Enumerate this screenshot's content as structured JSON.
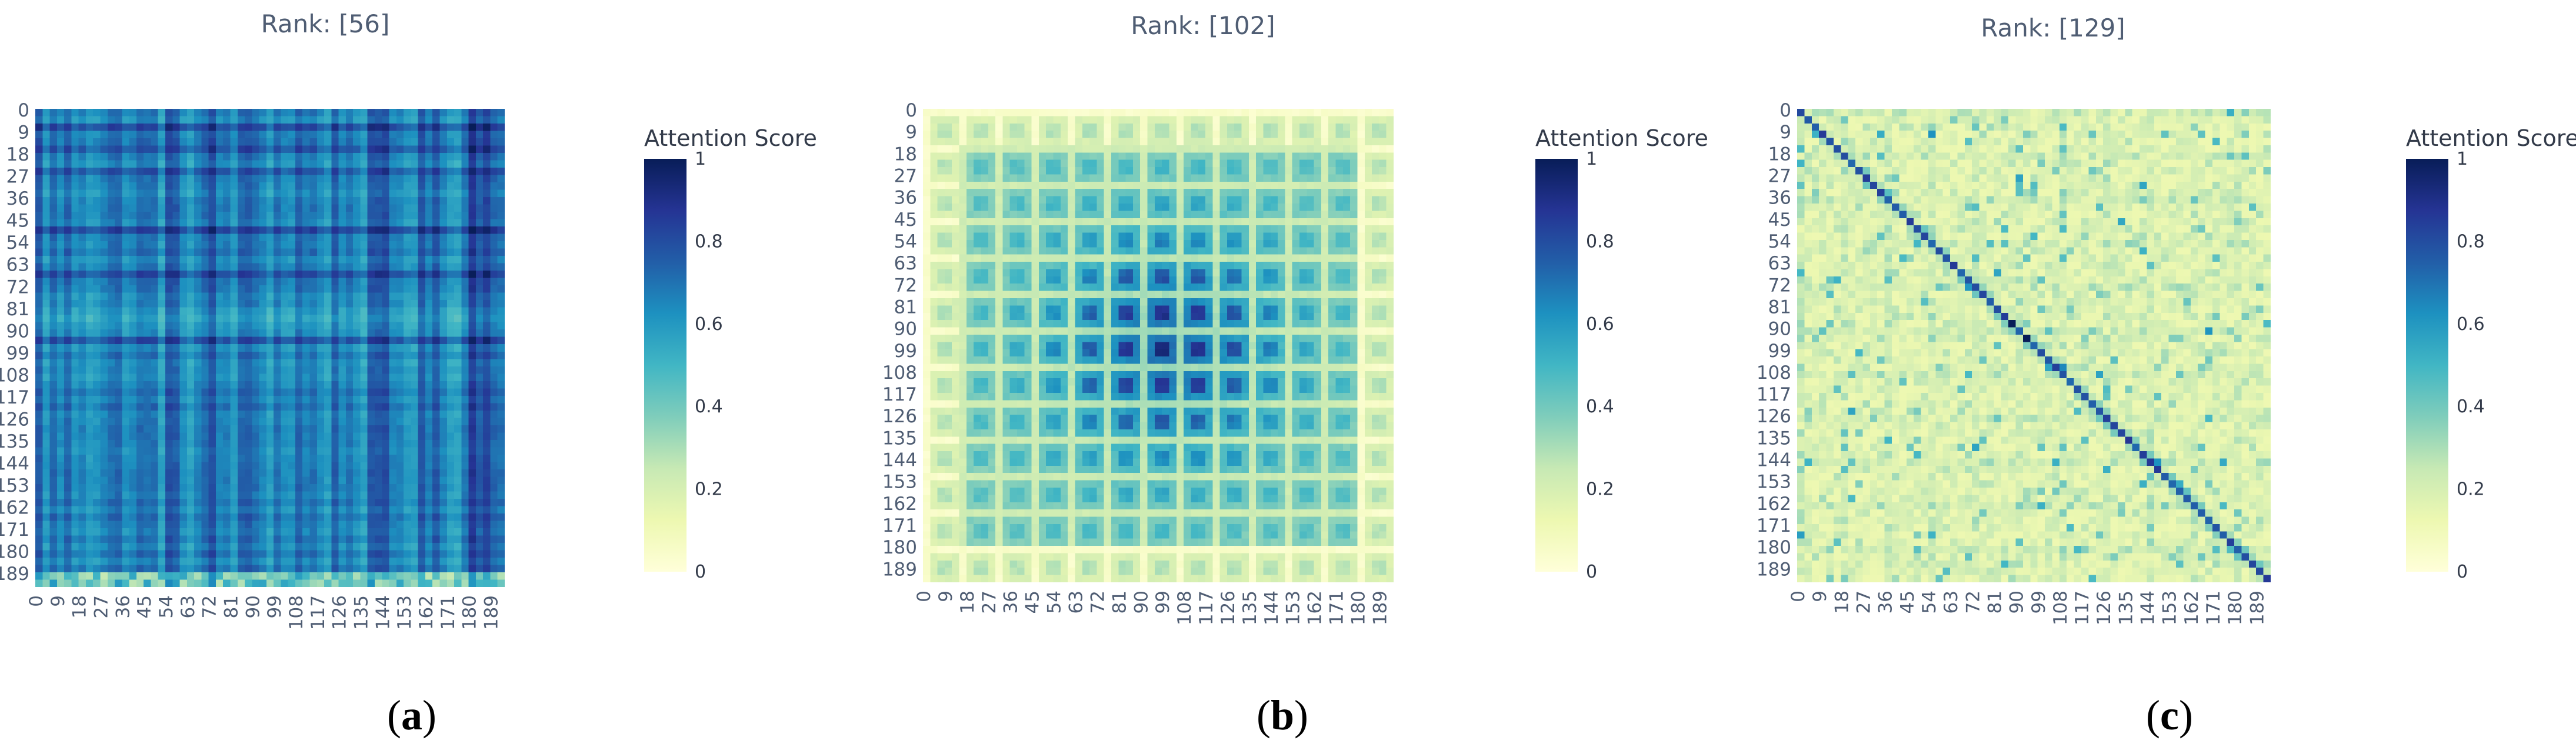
{
  "chart_data": [
    {
      "type": "heatmap",
      "title": "Rank: [56]",
      "panel_label": {
        "open": "(",
        "letter": "a",
        "close": ")"
      },
      "pattern": "column-stripes",
      "x_tick_labels": [
        "0",
        "9",
        "18",
        "27",
        "36",
        "45",
        "54",
        "63",
        "72",
        "81",
        "90",
        "99",
        "108",
        "117",
        "126",
        "135",
        "144",
        "153",
        "162",
        "171",
        "180",
        "189"
      ],
      "y_tick_labels": [
        "0",
        "9",
        "18",
        "27",
        "36",
        "45",
        "54",
        "63",
        "72",
        "81",
        "90",
        "99",
        "108",
        "117",
        "126",
        "135",
        "144",
        "153",
        "162",
        "171",
        "180",
        "189"
      ],
      "xlim": [
        0,
        195
      ],
      "ylim": [
        0,
        195
      ],
      "value_range": [
        0,
        1
      ],
      "typical_value_range": [
        0.45,
        0.9
      ],
      "colorbar": {
        "title": "Attention Score",
        "ticks": [
          "0",
          "0.2",
          "0.4",
          "0.6",
          "0.8",
          "1"
        ],
        "colorscale": "YlGnBu"
      }
    },
    {
      "type": "heatmap",
      "title": "Rank: [102]",
      "panel_label": {
        "open": "(",
        "letter": "b",
        "close": ")"
      },
      "pattern": "block-grid",
      "x_tick_labels": [
        "0",
        "9",
        "18",
        "27",
        "36",
        "45",
        "54",
        "63",
        "72",
        "81",
        "90",
        "99",
        "108",
        "117",
        "126",
        "135",
        "144",
        "153",
        "162",
        "171",
        "180",
        "189"
      ],
      "y_tick_labels": [
        "0",
        "9",
        "18",
        "27",
        "36",
        "45",
        "54",
        "63",
        "72",
        "81",
        "90",
        "99",
        "108",
        "117",
        "126",
        "135",
        "144",
        "153",
        "162",
        "171",
        "180",
        "189"
      ],
      "xlim": [
        0,
        195
      ],
      "ylim": [
        0,
        195
      ],
      "value_range": [
        0,
        1
      ],
      "typical_value_range": [
        0.1,
        0.95
      ],
      "colorbar": {
        "title": "Attention Score",
        "ticks": [
          "0",
          "0.2",
          "0.4",
          "0.6",
          "0.8",
          "1"
        ],
        "colorscale": "YlGnBu"
      }
    },
    {
      "type": "heatmap",
      "title": "Rank: [129]",
      "panel_label": {
        "open": "(",
        "letter": "c",
        "close": ")"
      },
      "pattern": "sparse-diagonal",
      "x_tick_labels": [
        "0",
        "9",
        "18",
        "27",
        "36",
        "45",
        "54",
        "63",
        "72",
        "81",
        "90",
        "99",
        "108",
        "117",
        "126",
        "135",
        "144",
        "153",
        "162",
        "171",
        "180",
        "189"
      ],
      "y_tick_labels": [
        "0",
        "9",
        "18",
        "27",
        "36",
        "45",
        "54",
        "63",
        "72",
        "81",
        "90",
        "99",
        "108",
        "117",
        "126",
        "135",
        "144",
        "153",
        "162",
        "171",
        "180",
        "189"
      ],
      "xlim": [
        0,
        195
      ],
      "ylim": [
        0,
        195
      ],
      "value_range": [
        0,
        1
      ],
      "typical_value_range": [
        0.05,
        0.6
      ],
      "colorbar": {
        "title": "Attention Score",
        "ticks": [
          "0",
          "0.2",
          "0.4",
          "0.6",
          "0.8",
          "1"
        ],
        "colorscale": "YlGnBu"
      }
    }
  ]
}
